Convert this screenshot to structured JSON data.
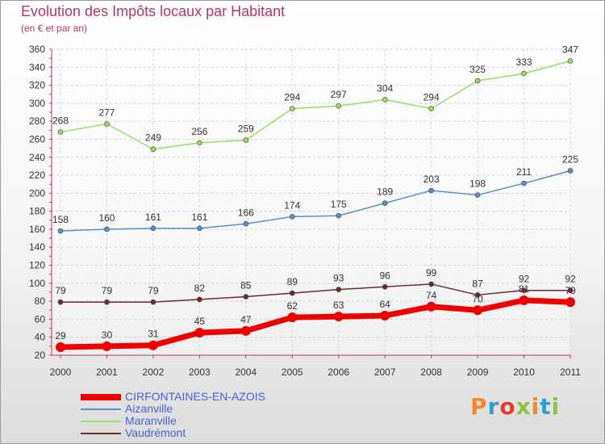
{
  "title": "Evolution des Impôts locaux par Habitant",
  "subtitle": "(en € et par an)",
  "brand": {
    "text": "Proxiti",
    "colors": [
      "#f08a24",
      "#2aa0d8",
      "#e53b2f",
      "#8cc63f",
      "#f08a24",
      "#2aa0d8",
      "#8cc63f"
    ]
  },
  "chart_data": {
    "type": "line",
    "x": [
      "2000",
      "2001",
      "2002",
      "2003",
      "2004",
      "2005",
      "2006",
      "2007",
      "2008",
      "2009",
      "2010",
      "2011"
    ],
    "ylim": [
      20,
      360
    ],
    "yticks": [
      20,
      40,
      60,
      80,
      100,
      120,
      140,
      160,
      180,
      200,
      220,
      240,
      260,
      280,
      300,
      320,
      340,
      360
    ],
    "grid": true,
    "legend_position": "bottom-left",
    "series": [
      {
        "name": "CIRFONTAINES-EN-AZOIS",
        "color": "#ee0000",
        "values": [
          29,
          30,
          31,
          45,
          47,
          62,
          63,
          64,
          74,
          70,
          81,
          79
        ],
        "labels": [
          "29",
          "30",
          "31",
          "45",
          "47",
          "62",
          "63",
          "64",
          "74",
          "70",
          "81",
          "79"
        ]
      },
      {
        "name": "Aizanville",
        "color": "#5b8fc8",
        "values": [
          158,
          160,
          161,
          161,
          166,
          174,
          175,
          189,
          203,
          198,
          211,
          225
        ],
        "labels": [
          "158",
          "160",
          "161",
          "161",
          "166",
          "174",
          "175",
          "189",
          "203",
          "198",
          "211",
          "225"
        ]
      },
      {
        "name": "Maranville",
        "color": "#99dd66",
        "values": [
          268,
          277,
          249,
          256,
          259,
          294,
          297,
          304,
          294,
          325,
          333,
          347
        ],
        "labels": [
          "268",
          "277",
          "249",
          "256",
          "259",
          "294",
          "297",
          "304",
          "294",
          "325",
          "333",
          "347"
        ]
      },
      {
        "name": "Vaudrémont",
        "color": "#6b2b2b",
        "values": [
          79,
          79,
          79,
          82,
          85,
          89,
          93,
          96,
          99,
          87,
          92,
          92
        ],
        "labels": [
          "79",
          "79",
          "79",
          "82",
          "85",
          "89",
          "93",
          "96",
          "99",
          "87",
          "92",
          "92"
        ]
      }
    ]
  }
}
